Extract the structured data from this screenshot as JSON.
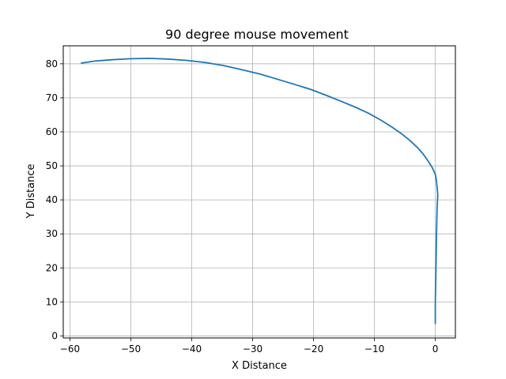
{
  "chart_data": {
    "type": "line",
    "title": "90 degree mouse movement",
    "xlabel": "X Distance",
    "ylabel": "Y Distance",
    "xlim": [
      -61.1,
      3.3
    ],
    "ylim": [
      -0.6,
      85.3
    ],
    "xticks": [
      -60,
      -50,
      -40,
      -30,
      -20,
      -10,
      0
    ],
    "yticks": [
      0,
      10,
      20,
      30,
      40,
      50,
      60,
      70,
      80
    ],
    "grid": true,
    "series": [
      {
        "color": "#1f77b4",
        "x": [
          0.0,
          0.0,
          0.1,
          0.2,
          0.3,
          0.4,
          0.2,
          0.0,
          -0.5,
          -1.2,
          -2.0,
          -3.0,
          -4.2,
          -5.6,
          -7.2,
          -9.0,
          -11.0,
          -13.2,
          -15.5,
          -18.0,
          -20.5,
          -23.2,
          -26.0,
          -28.8,
          -31.8,
          -34.8,
          -37.8,
          -40.8,
          -43.9,
          -47.0,
          -50.1,
          -53.2,
          -56.0,
          -58.2
        ],
        "y": [
          3.5,
          10.0,
          20.0,
          30.0,
          38.0,
          41.5,
          45.5,
          47.5,
          49.5,
          51.5,
          53.5,
          55.5,
          57.5,
          59.5,
          61.5,
          63.5,
          65.5,
          67.3,
          69.0,
          70.8,
          72.5,
          74.0,
          75.5,
          77.0,
          78.3,
          79.5,
          80.4,
          81.0,
          81.4,
          81.6,
          81.5,
          81.2,
          80.8,
          80.2
        ]
      }
    ]
  }
}
